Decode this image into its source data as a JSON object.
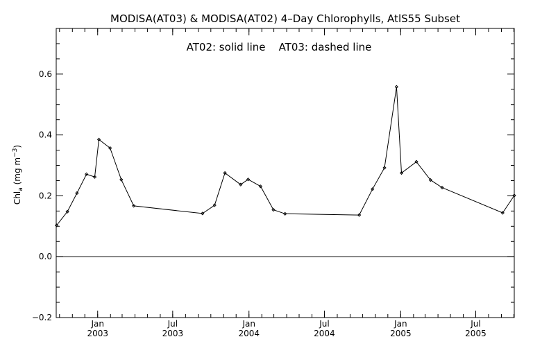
{
  "chart_data": {
    "type": "line",
    "title": "MODISA(AT03) & MODISA(AT02) 4–Day Chlorophylls, AtlS55 Subset",
    "annotation": "AT02: solid line    AT03: dashed line",
    "ylabel": {
      "main": "Chl",
      "subscript": "a",
      "unit_open": " (mg m",
      "unit_exp": "−3",
      "unit_close": ")"
    },
    "ylim": [
      -0.2,
      0.75
    ],
    "xlim": [
      "2002-09-23",
      "2005-10-02"
    ],
    "y_ticks": [
      {
        "value": -0.2,
        "label": "−0.2"
      },
      {
        "value": 0.0,
        "label": "0.0"
      },
      {
        "value": 0.2,
        "label": "0.2"
      },
      {
        "value": 0.4,
        "label": "0.4"
      },
      {
        "value": 0.6,
        "label": "0.6"
      }
    ],
    "x_ticks": [
      {
        "date": "2003-01-01",
        "month": "Jan",
        "year": "2003"
      },
      {
        "date": "2003-07-01",
        "month": "Jul",
        "year": "2003"
      },
      {
        "date": "2004-01-01",
        "month": "Jan",
        "year": "2004"
      },
      {
        "date": "2004-07-01",
        "month": "Jul",
        "year": "2004"
      },
      {
        "date": "2005-01-01",
        "month": "Jan",
        "year": "2005"
      },
      {
        "date": "2005-07-01",
        "month": "Jul",
        "year": "2005"
      }
    ],
    "zero_line": true,
    "grid": false,
    "series": [
      {
        "line_style": "solid",
        "points": [
          {
            "date": "2002-09-24",
            "value": 0.103
          },
          {
            "date": "2002-10-20",
            "value": 0.148
          },
          {
            "date": "2002-11-12",
            "value": 0.209
          },
          {
            "date": "2002-12-05",
            "value": 0.271
          },
          {
            "date": "2002-12-25",
            "value": 0.262
          },
          {
            "date": "2003-01-04",
            "value": 0.385
          },
          {
            "date": "2003-01-31",
            "value": 0.357
          },
          {
            "date": "2003-02-27",
            "value": 0.253
          },
          {
            "date": "2003-03-29",
            "value": 0.167
          },
          {
            "date": "2003-09-11",
            "value": 0.142
          },
          {
            "date": "2003-10-10",
            "value": 0.169
          },
          {
            "date": "2003-11-04",
            "value": 0.275
          },
          {
            "date": "2003-12-12",
            "value": 0.237
          },
          {
            "date": "2003-12-30",
            "value": 0.254
          },
          {
            "date": "2004-01-29",
            "value": 0.231
          },
          {
            "date": "2004-02-29",
            "value": 0.154
          },
          {
            "date": "2004-03-28",
            "value": 0.141
          },
          {
            "date": "2004-09-23",
            "value": 0.137
          },
          {
            "date": "2004-10-25",
            "value": 0.222
          },
          {
            "date": "2004-11-23",
            "value": 0.292
          },
          {
            "date": "2004-12-22",
            "value": 0.558
          },
          {
            "date": "2005-01-03",
            "value": 0.275
          },
          {
            "date": "2005-02-08",
            "value": 0.312
          },
          {
            "date": "2005-03-14",
            "value": 0.252
          },
          {
            "date": "2005-04-11",
            "value": 0.227
          },
          {
            "date": "2005-09-04",
            "value": 0.144
          },
          {
            "date": "2005-10-02",
            "value": 0.201
          }
        ]
      }
    ]
  }
}
